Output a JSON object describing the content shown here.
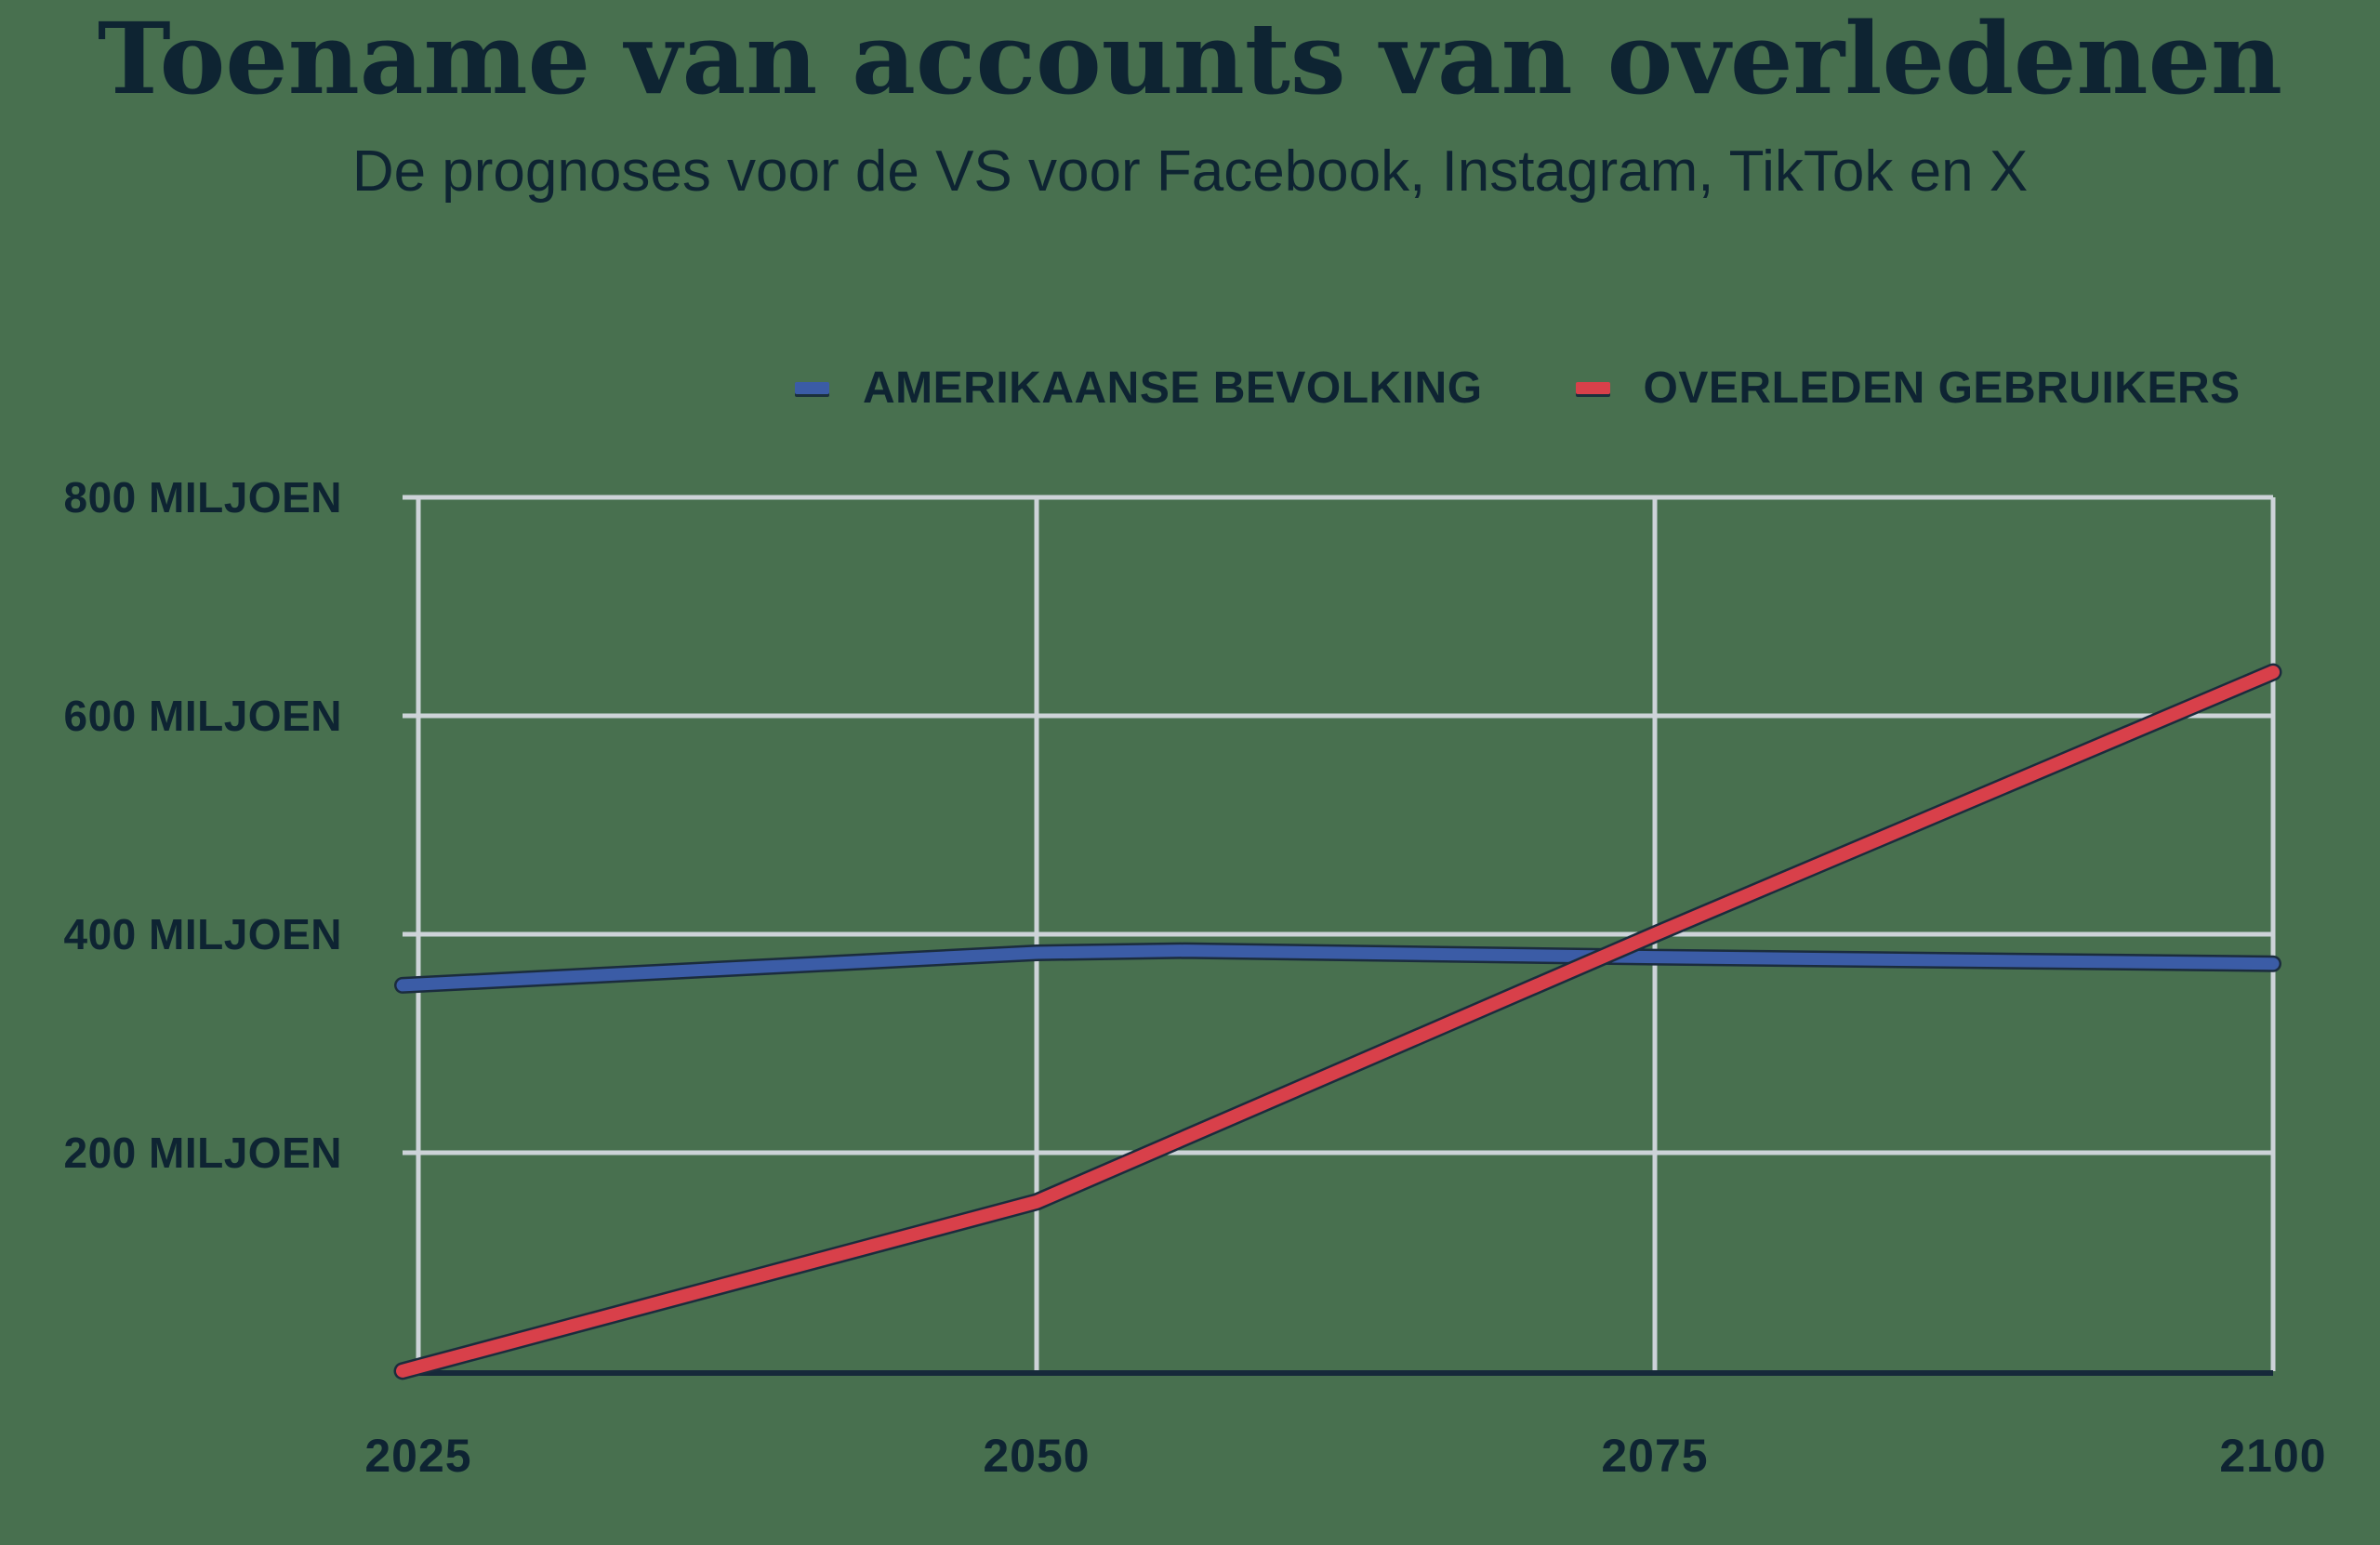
{
  "header": {
    "title": "Toename van accounts van overledenen",
    "subtitle": "De prognoses voor de VS voor Facebook, Instagram, TikTok en X"
  },
  "colors": {
    "background": "#48704f",
    "text": "#0e2432",
    "grid": "#cdd3d8",
    "axis": "#16293a",
    "line_outline": "#1b2c3d",
    "series_blue": "#3b5ca6",
    "series_red": "#d8404a"
  },
  "chart_data": {
    "type": "line",
    "title": "Toename van accounts van overledenen",
    "subtitle": "De prognoses voor de VS voor Facebook, Instagram, TikTok en X",
    "unit": "miljoen",
    "xlabel": "",
    "ylabel": "",
    "xlim": [
      2025,
      2100
    ],
    "ylim": [
      0,
      800
    ],
    "grid": true,
    "legend_position": "top",
    "x_ticks": [
      "2025",
      "2050",
      "2075",
      "2100"
    ],
    "y_ticks": [
      {
        "value": 200,
        "label": "200 MILJOEN"
      },
      {
        "value": 400,
        "label": "400 MILJOEN"
      },
      {
        "value": 600,
        "label": "600 MILJOEN"
      },
      {
        "value": 800,
        "label": "800 MILJOEN"
      }
    ],
    "series": [
      {
        "name": "AMERIKAANSE BEVOLKING",
        "color": "#3b5ca6",
        "points": [
          [
            2025,
            354
          ],
          [
            2050,
            383
          ],
          [
            2056,
            385
          ],
          [
            2075,
            379
          ],
          [
            2100,
            373
          ]
        ]
      },
      {
        "name": "OVERLEDEN GEBRUIKERS",
        "color": "#d8404a",
        "points": [
          [
            2025,
            4
          ],
          [
            2050,
            155
          ],
          [
            2075,
            400
          ],
          [
            2100,
            640
          ]
        ]
      }
    ]
  }
}
